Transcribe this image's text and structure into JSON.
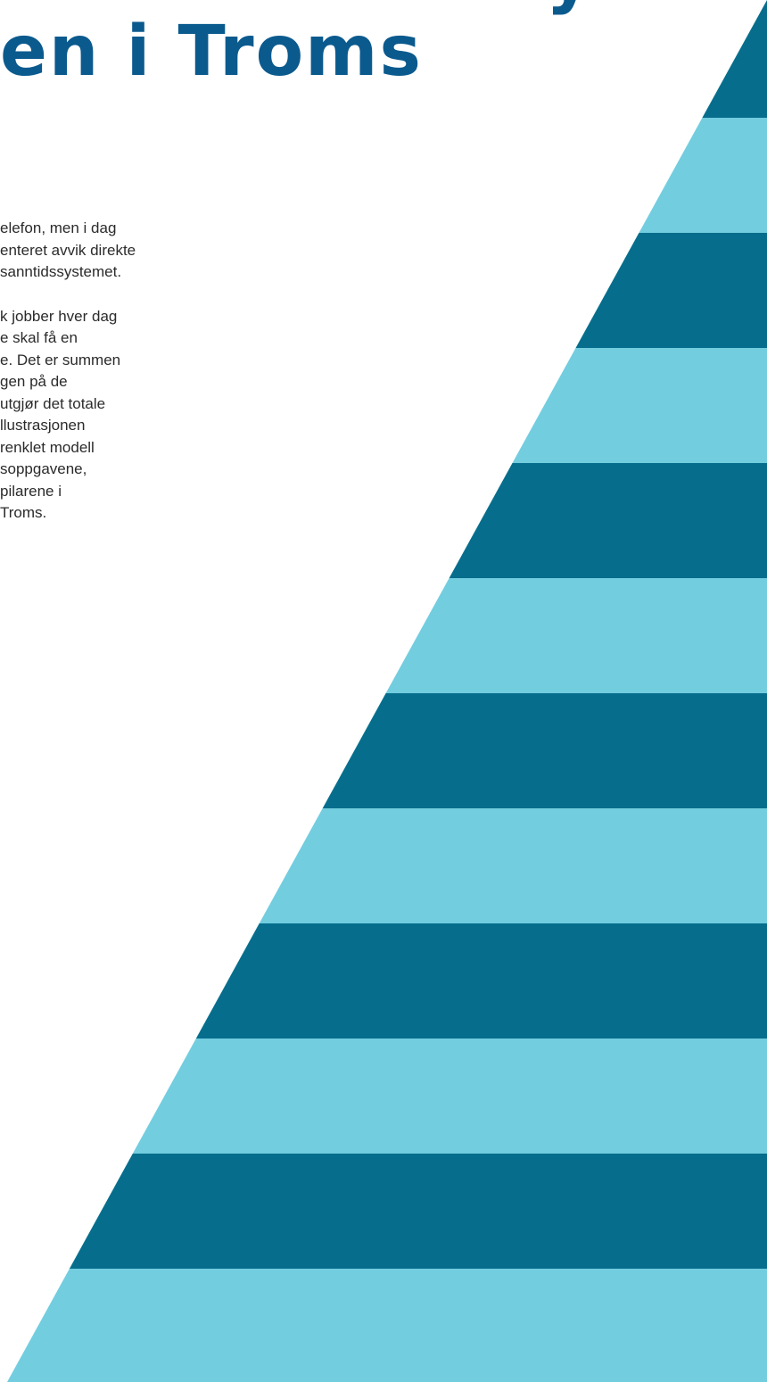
{
  "heading": {
    "line_top_fragment": "y",
    "line_main": "en i Troms"
  },
  "body": {
    "paragraph_1": [
      "elefon, men i dag",
      "enteret avvik direkte",
      "sanntidssystemet."
    ],
    "paragraph_2": [
      "k jobber hver dag",
      "e skal få en",
      "e. Det er summen",
      "gen på de",
      "utgjør det totale",
      "llustrasjonen",
      "renklet modell",
      "soppgavene,",
      "pilarene i",
      "Troms."
    ]
  },
  "pyramid": {
    "band_count": 12,
    "colors": {
      "dark": "#066e8c",
      "light": "#72cddf"
    }
  }
}
